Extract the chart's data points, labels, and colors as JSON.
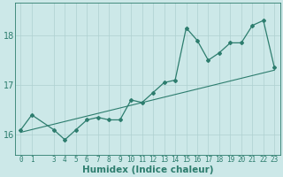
{
  "xlabel": "Humidex (Indice chaleur)",
  "x_values": [
    0,
    1,
    3,
    4,
    5,
    6,
    7,
    8,
    9,
    10,
    11,
    12,
    13,
    14,
    15,
    16,
    17,
    18,
    19,
    20,
    21,
    22,
    23
  ],
  "y_values": [
    16.1,
    16.4,
    16.1,
    15.9,
    16.1,
    16.3,
    16.35,
    16.3,
    16.3,
    16.7,
    16.65,
    16.85,
    17.05,
    17.1,
    18.15,
    17.9,
    17.5,
    17.65,
    17.85,
    17.85,
    18.2,
    18.3,
    17.35
  ],
  "trend_x": [
    0,
    23
  ],
  "trend_y": [
    16.05,
    17.3
  ],
  "line_color": "#2d7d6e",
  "bg_color": "#cce8e8",
  "grid_color": "#aed0d0",
  "ylim": [
    15.6,
    18.65
  ],
  "xlim": [
    -0.5,
    23.5
  ],
  "yticks": [
    16,
    17,
    18
  ],
  "xticks": [
    0,
    1,
    3,
    4,
    5,
    6,
    7,
    8,
    9,
    10,
    11,
    12,
    13,
    14,
    15,
    16,
    17,
    18,
    19,
    20,
    21,
    22,
    23
  ],
  "tick_fontsize": 5.5,
  "xlabel_fontsize": 7.5,
  "ytick_fontsize": 7
}
